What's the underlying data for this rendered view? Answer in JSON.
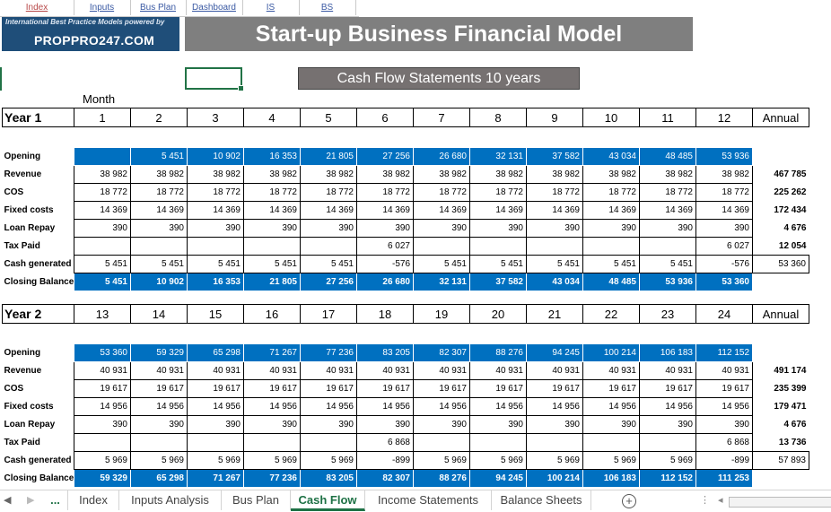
{
  "nav": [
    "Index",
    "Inputs",
    "Bus Plan",
    "Dashboard",
    "IS",
    "BS"
  ],
  "logo": {
    "tagline": "International Best Practice Models powered by",
    "brand": "PROPPRO247.COM"
  },
  "title": "Start-up Business Financial Model",
  "subtitle": "Cash Flow Statements 10 years",
  "month_label": "Month",
  "rows": [
    "Opening",
    "Revenue",
    "COS",
    "Fixed costs",
    "Loan Repay",
    "Tax Paid",
    "Cash generated",
    "Closing Balance"
  ],
  "year1": {
    "label": "Year 1",
    "months": [
      "1",
      "2",
      "3",
      "4",
      "5",
      "6",
      "7",
      "8",
      "9",
      "10",
      "11",
      "12"
    ],
    "annual": "Annual",
    "data": {
      "opening": [
        "",
        "5 451",
        "10 902",
        "16 353",
        "21 805",
        "27 256",
        "26 680",
        "32 131",
        "37 582",
        "43 034",
        "48 485",
        "53 936"
      ],
      "revenue": [
        "38 982",
        "38 982",
        "38 982",
        "38 982",
        "38 982",
        "38 982",
        "38 982",
        "38 982",
        "38 982",
        "38 982",
        "38 982",
        "38 982"
      ],
      "cos": [
        "18 772",
        "18 772",
        "18 772",
        "18 772",
        "18 772",
        "18 772",
        "18 772",
        "18 772",
        "18 772",
        "18 772",
        "18 772",
        "18 772"
      ],
      "fixed": [
        "14 369",
        "14 369",
        "14 369",
        "14 369",
        "14 369",
        "14 369",
        "14 369",
        "14 369",
        "14 369",
        "14 369",
        "14 369",
        "14 369"
      ],
      "loan": [
        "390",
        "390",
        "390",
        "390",
        "390",
        "390",
        "390",
        "390",
        "390",
        "390",
        "390",
        "390"
      ],
      "tax": [
        "",
        "",
        "",
        "",
        "",
        "6 027",
        "",
        "",
        "",
        "",
        "",
        "6 027"
      ],
      "cash": [
        "5 451",
        "5 451",
        "5 451",
        "5 451",
        "5 451",
        "-576",
        "5 451",
        "5 451",
        "5 451",
        "5 451",
        "5 451",
        "-576"
      ],
      "closing": [
        "5 451",
        "10 902",
        "16 353",
        "21 805",
        "27 256",
        "26 680",
        "32 131",
        "37 582",
        "43 034",
        "48 485",
        "53 936",
        "53 360"
      ]
    },
    "totals": {
      "revenue": "467 785",
      "cos": "225 262",
      "fixed": "172 434",
      "loan": "4 676",
      "tax": "12 054",
      "cash": "53 360"
    }
  },
  "year2": {
    "label": "Year 2",
    "months": [
      "13",
      "14",
      "15",
      "16",
      "17",
      "18",
      "19",
      "20",
      "21",
      "22",
      "23",
      "24"
    ],
    "annual": "Annual",
    "data": {
      "opening": [
        "53 360",
        "59 329",
        "65 298",
        "71 267",
        "77 236",
        "83 205",
        "82 307",
        "88 276",
        "94 245",
        "100 214",
        "106 183",
        "112 152"
      ],
      "revenue": [
        "40 931",
        "40 931",
        "40 931",
        "40 931",
        "40 931",
        "40 931",
        "40 931",
        "40 931",
        "40 931",
        "40 931",
        "40 931",
        "40 931"
      ],
      "cos": [
        "19 617",
        "19 617",
        "19 617",
        "19 617",
        "19 617",
        "19 617",
        "19 617",
        "19 617",
        "19 617",
        "19 617",
        "19 617",
        "19 617"
      ],
      "fixed": [
        "14 956",
        "14 956",
        "14 956",
        "14 956",
        "14 956",
        "14 956",
        "14 956",
        "14 956",
        "14 956",
        "14 956",
        "14 956",
        "14 956"
      ],
      "loan": [
        "390",
        "390",
        "390",
        "390",
        "390",
        "390",
        "390",
        "390",
        "390",
        "390",
        "390",
        "390"
      ],
      "tax": [
        "",
        "",
        "",
        "",
        "",
        "6 868",
        "",
        "",
        "",
        "",
        "",
        "6 868"
      ],
      "cash": [
        "5 969",
        "5 969",
        "5 969",
        "5 969",
        "5 969",
        "-899",
        "5 969",
        "5 969",
        "5 969",
        "5 969",
        "5 969",
        "-899"
      ],
      "closing": [
        "59 329",
        "65 298",
        "71 267",
        "77 236",
        "83 205",
        "82 307",
        "88 276",
        "94 245",
        "100 214",
        "106 183",
        "112 152",
        "111 253"
      ]
    },
    "totals": {
      "revenue": "491 174",
      "cos": "235 399",
      "fixed": "179 471",
      "loan": "4 676",
      "tax": "13 736",
      "cash": "57 893"
    }
  },
  "tabs": [
    "Index",
    "Inputs Analysis",
    "Bus Plan",
    "Cash Flow",
    "Income Statements",
    "Balance Sheets"
  ],
  "active_tab": "Cash Flow",
  "tab_ellipsis": "...",
  "colors": {
    "accent_blue": "#0070c0",
    "banner_gray": "#7f7f7f",
    "logo_navy": "#1f4e79",
    "excel_green": "#217346"
  }
}
